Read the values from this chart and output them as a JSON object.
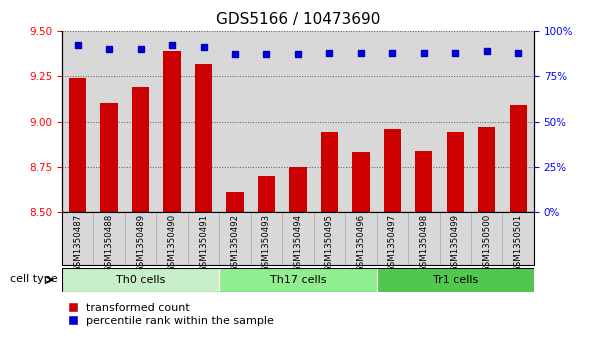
{
  "title": "GDS5166 / 10473690",
  "samples": [
    "GSM1350487",
    "GSM1350488",
    "GSM1350489",
    "GSM1350490",
    "GSM1350491",
    "GSM1350492",
    "GSM1350493",
    "GSM1350494",
    "GSM1350495",
    "GSM1350496",
    "GSM1350497",
    "GSM1350498",
    "GSM1350499",
    "GSM1350500",
    "GSM1350501"
  ],
  "transformed_count": [
    9.24,
    9.1,
    9.19,
    9.39,
    9.32,
    8.61,
    8.7,
    8.75,
    8.94,
    8.83,
    8.96,
    8.84,
    8.94,
    8.97,
    9.09
  ],
  "percentile_rank": [
    92,
    90,
    90,
    92,
    91,
    87,
    87,
    87,
    88,
    88,
    88,
    88,
    88,
    89,
    88
  ],
  "cell_groups": [
    {
      "label": "Th0 cells",
      "start": 0,
      "end": 5,
      "color": "#c8f0c8"
    },
    {
      "label": "Th17 cells",
      "start": 5,
      "end": 10,
      "color": "#90ee90"
    },
    {
      "label": "Tr1 cells",
      "start": 10,
      "end": 15,
      "color": "#50c850"
    }
  ],
  "bar_color": "#cc0000",
  "dot_color": "#0000cc",
  "ylim_left": [
    8.5,
    9.5
  ],
  "ylim_right": [
    0,
    100
  ],
  "yticks_left": [
    8.5,
    8.75,
    9.0,
    9.25,
    9.5
  ],
  "yticks_right": [
    0,
    25,
    50,
    75,
    100
  ],
  "ytick_labels_right": [
    "0%",
    "25%",
    "50%",
    "75%",
    "100%"
  ],
  "grid_color": "#555555",
  "bg_color": "#d8d8d8",
  "legend_labels": [
    "transformed count",
    "percentile rank within the sample"
  ],
  "cell_type_label": "cell type",
  "title_fontsize": 11,
  "tick_fontsize": 7.5,
  "label_fontsize": 8.5
}
